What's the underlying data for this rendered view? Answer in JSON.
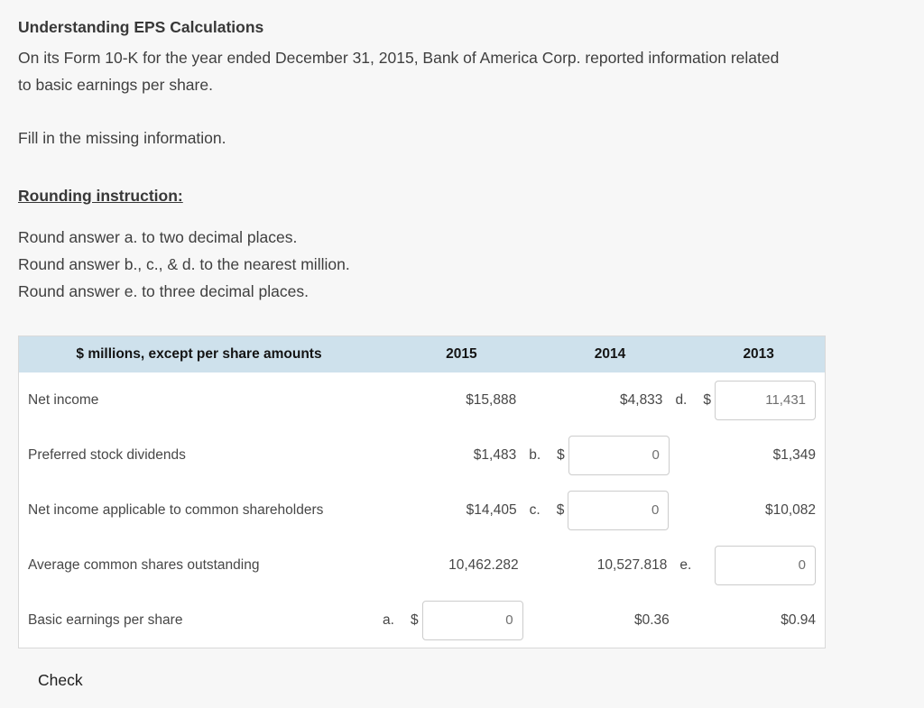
{
  "page": {
    "title": "Understanding EPS Calculations",
    "intro_lines": [
      "On its Form 10-K for the year ended December 31, 2015, Bank of America Corp. reported information related",
      "to basic earnings per share."
    ],
    "fill_prompt": "Fill in the missing information.",
    "rounding": {
      "heading": "Rounding instruction:",
      "lines": [
        "Round answer a. to two decimal places.",
        "Round answer b., c., & d. to the nearest million.",
        "Round answer e. to three decimal places."
      ]
    },
    "check_label": "Check"
  },
  "table": {
    "columns": [
      "$ millions, except per share amounts",
      "2015",
      "2014",
      "2013"
    ],
    "rows": [
      {
        "label": "Net income",
        "cells": [
          {
            "type": "text",
            "value": "$15,888"
          },
          {
            "type": "text",
            "value": "$4,833"
          },
          {
            "type": "input",
            "letter": "d.",
            "dollar": "$",
            "value": "11,431",
            "name": "answer-input-d"
          }
        ]
      },
      {
        "label": "Preferred stock dividends",
        "cells": [
          {
            "type": "text",
            "value": "$1,483"
          },
          {
            "type": "input",
            "letter": "b.",
            "dollar": "$",
            "value": "0",
            "name": "answer-input-b"
          },
          {
            "type": "text",
            "value": "$1,349"
          }
        ]
      },
      {
        "label": "Net income applicable to common shareholders",
        "cells": [
          {
            "type": "text",
            "value": "$14,405"
          },
          {
            "type": "input",
            "letter": "c.",
            "dollar": "$",
            "value": "0",
            "name": "answer-input-c"
          },
          {
            "type": "text",
            "value": "$10,082"
          }
        ]
      },
      {
        "label": "Average common shares outstanding",
        "cells": [
          {
            "type": "text",
            "value": "10,462.282"
          },
          {
            "type": "text",
            "value": "10,527.818"
          },
          {
            "type": "input",
            "letter": "e.",
            "dollar": "",
            "value": "0",
            "name": "answer-input-e"
          }
        ]
      },
      {
        "label": "Basic earnings per share",
        "cells": [
          {
            "type": "input",
            "letter": "a.",
            "dollar": "$",
            "value": "0",
            "name": "answer-input-a"
          },
          {
            "type": "text",
            "value": "$0.36"
          },
          {
            "type": "text",
            "value": "$0.94"
          }
        ]
      }
    ]
  },
  "colors": {
    "page_bg": "#f7f7f7",
    "table_header_bg": "#cee1ec",
    "table_border": "#d9d9d9",
    "input_border": "#cccccc",
    "input_text": "#6f6f6f",
    "body_text": "#3f3f3f"
  }
}
